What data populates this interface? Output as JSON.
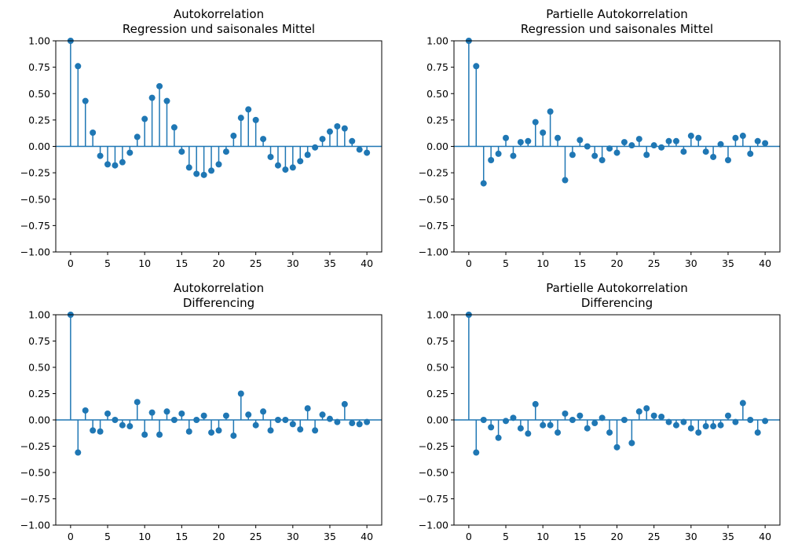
{
  "colors": {
    "series": "#1f77b4",
    "axes": "#000000",
    "background": "#ffffff"
  },
  "chart_data": [
    {
      "type": "stem",
      "title": [
        "Autokorrelation",
        "Regression und saisonales Mittel"
      ],
      "xlim": [
        -2,
        42
      ],
      "ylim": [
        -1,
        1
      ],
      "xticks": [
        0,
        5,
        10,
        15,
        20,
        25,
        30,
        35,
        40
      ],
      "yticks": [
        "-1.00",
        "-0.75",
        "-0.50",
        "-0.25",
        "0.00",
        "0.25",
        "0.50",
        "0.75",
        "1.00"
      ],
      "grid": false,
      "x": [
        0,
        1,
        2,
        3,
        4,
        5,
        6,
        7,
        8,
        9,
        10,
        11,
        12,
        13,
        14,
        15,
        16,
        17,
        18,
        19,
        20,
        21,
        22,
        23,
        24,
        25,
        26,
        27,
        28,
        29,
        30,
        31,
        32,
        33,
        34,
        35,
        36,
        37,
        38,
        39,
        40
      ],
      "values": [
        1.0,
        0.76,
        0.43,
        0.13,
        -0.09,
        -0.17,
        -0.18,
        -0.15,
        -0.06,
        0.09,
        0.26,
        0.46,
        0.57,
        0.43,
        0.18,
        -0.05,
        -0.2,
        -0.26,
        -0.27,
        -0.23,
        -0.17,
        -0.05,
        0.1,
        0.27,
        0.35,
        0.25,
        0.07,
        -0.1,
        -0.18,
        -0.22,
        -0.2,
        -0.14,
        -0.08,
        -0.01,
        0.07,
        0.14,
        0.19,
        0.17,
        0.05,
        -0.03,
        -0.06
      ]
    },
    {
      "type": "stem",
      "title": [
        "Partielle Autokorrelation",
        "Regression und saisonales Mittel"
      ],
      "xlim": [
        -2,
        42
      ],
      "ylim": [
        -1,
        1
      ],
      "xticks": [
        0,
        5,
        10,
        15,
        20,
        25,
        30,
        35,
        40
      ],
      "yticks": [
        "-1.00",
        "-0.75",
        "-0.50",
        "-0.25",
        "0.00",
        "0.25",
        "0.50",
        "0.75",
        "1.00"
      ],
      "grid": false,
      "x": [
        0,
        1,
        2,
        3,
        4,
        5,
        6,
        7,
        8,
        9,
        10,
        11,
        12,
        13,
        14,
        15,
        16,
        17,
        18,
        19,
        20,
        21,
        22,
        23,
        24,
        25,
        26,
        27,
        28,
        29,
        30,
        31,
        32,
        33,
        34,
        35,
        36,
        37,
        38,
        39,
        40
      ],
      "values": [
        1.0,
        0.76,
        -0.35,
        -0.13,
        -0.07,
        0.08,
        -0.09,
        0.04,
        0.05,
        0.23,
        0.13,
        0.33,
        0.08,
        -0.32,
        -0.08,
        0.06,
        0.0,
        -0.09,
        -0.13,
        -0.02,
        -0.06,
        0.04,
        0.01,
        0.07,
        -0.08,
        0.01,
        -0.01,
        0.05,
        0.05,
        -0.05,
        0.1,
        0.08,
        -0.05,
        -0.1,
        0.02,
        -0.13,
        0.08,
        0.1,
        -0.07,
        0.05,
        0.03
      ]
    },
    {
      "type": "stem",
      "title": [
        "Autokorrelation",
        "Differencing"
      ],
      "xlim": [
        -2,
        42
      ],
      "ylim": [
        -1,
        1
      ],
      "xticks": [
        0,
        5,
        10,
        15,
        20,
        25,
        30,
        35,
        40
      ],
      "yticks": [
        "-1.00",
        "-0.75",
        "-0.50",
        "-0.25",
        "0.00",
        "0.25",
        "0.50",
        "0.75",
        "1.00"
      ],
      "grid": false,
      "x": [
        0,
        1,
        2,
        3,
        4,
        5,
        6,
        7,
        8,
        9,
        10,
        11,
        12,
        13,
        14,
        15,
        16,
        17,
        18,
        19,
        20,
        21,
        22,
        23,
        24,
        25,
        26,
        27,
        28,
        29,
        30,
        31,
        32,
        33,
        34,
        35,
        36,
        37,
        38,
        39,
        40
      ],
      "values": [
        1.0,
        -0.31,
        0.09,
        -0.1,
        -0.11,
        0.06,
        0.0,
        -0.05,
        -0.06,
        0.17,
        -0.14,
        0.07,
        -0.14,
        0.08,
        0.0,
        0.06,
        -0.11,
        0.0,
        0.04,
        -0.12,
        -0.1,
        0.04,
        -0.15,
        0.25,
        0.05,
        -0.05,
        0.08,
        -0.1,
        0.0,
        0.0,
        -0.04,
        -0.09,
        0.11,
        -0.1,
        0.05,
        0.01,
        -0.02,
        0.15,
        -0.03,
        -0.04,
        -0.02
      ]
    },
    {
      "type": "stem",
      "title": [
        "Partielle Autokorrelation",
        "Differencing"
      ],
      "xlim": [
        -2,
        42
      ],
      "ylim": [
        -1,
        1
      ],
      "xticks": [
        0,
        5,
        10,
        15,
        20,
        25,
        30,
        35,
        40
      ],
      "yticks": [
        "-1.00",
        "-0.75",
        "-0.50",
        "-0.25",
        "0.00",
        "0.25",
        "0.50",
        "0.75",
        "1.00"
      ],
      "grid": false,
      "x": [
        0,
        1,
        2,
        3,
        4,
        5,
        6,
        7,
        8,
        9,
        10,
        11,
        12,
        13,
        14,
        15,
        16,
        17,
        18,
        19,
        20,
        21,
        22,
        23,
        24,
        25,
        26,
        27,
        28,
        29,
        30,
        31,
        32,
        33,
        34,
        35,
        36,
        37,
        38,
        39,
        40
      ],
      "values": [
        1.0,
        -0.31,
        0.0,
        -0.07,
        -0.17,
        -0.01,
        0.02,
        -0.08,
        -0.13,
        0.15,
        -0.05,
        -0.05,
        -0.12,
        0.06,
        0.0,
        0.04,
        -0.08,
        -0.03,
        0.02,
        -0.12,
        -0.26,
        0.0,
        -0.22,
        0.08,
        0.11,
        0.04,
        0.03,
        -0.02,
        -0.05,
        -0.02,
        -0.08,
        -0.12,
        -0.06,
        -0.06,
        -0.05,
        0.04,
        -0.02,
        0.16,
        0.0,
        -0.12,
        -0.01
      ]
    }
  ]
}
